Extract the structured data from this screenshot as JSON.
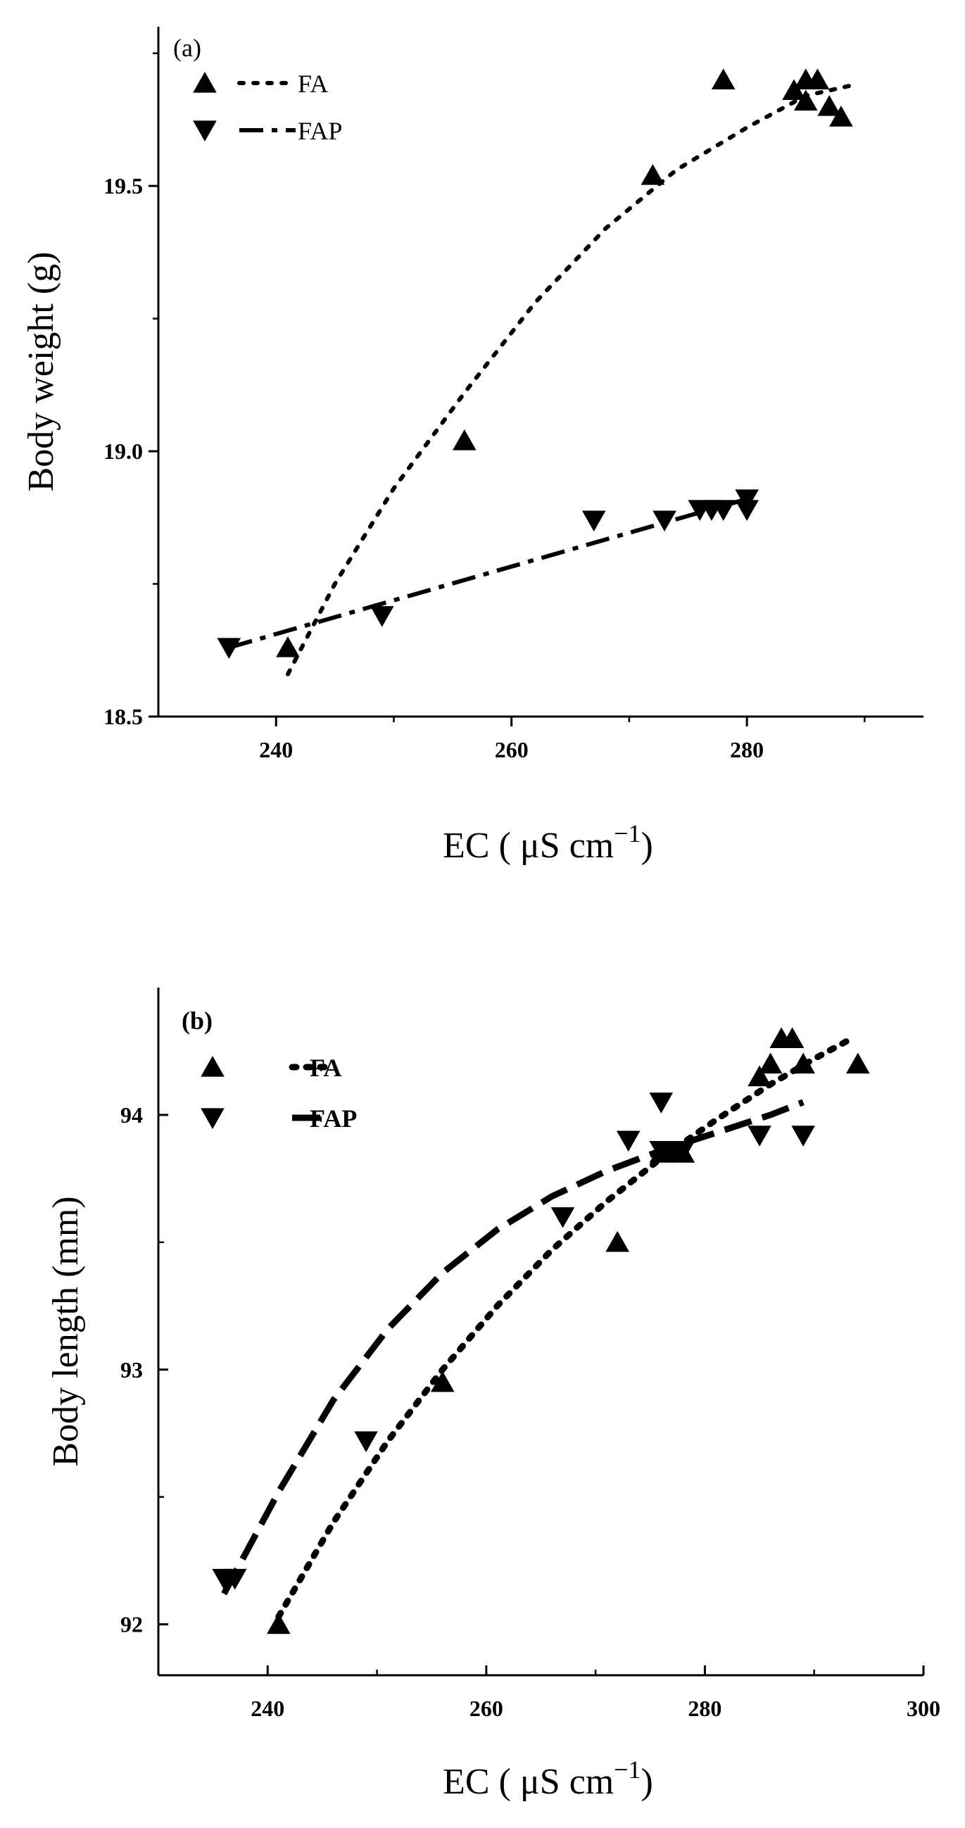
{
  "chart_data": [
    {
      "type": "scatter",
      "panel_label": "(a)",
      "xlabel": "EC ( μS cm−1)",
      "xlabel_parts": {
        "main": "EC ( μS cm",
        "sup": "−1",
        "close": ")"
      },
      "ylabel": "Body weight (g)",
      "xlim": [
        230,
        295
      ],
      "ylim": [
        18.5,
        19.8
      ],
      "xticks": [
        240,
        260,
        280
      ],
      "xtick_labels": [
        "240",
        "260",
        "280"
      ],
      "yticks": [
        18.5,
        19.0,
        19.5
      ],
      "ytick_labels": [
        "18.5",
        "19.0",
        "19.5"
      ],
      "grid": false,
      "legend_position": "top-left",
      "series": [
        {
          "name": "FA",
          "marker": "triangle-up",
          "line_style": "dotted",
          "points": [
            [
              241,
              18.63
            ],
            [
              256,
              19.02
            ],
            [
              272,
              19.52
            ],
            [
              278,
              19.7
            ],
            [
              284,
              19.68
            ],
            [
              285,
              19.7
            ],
            [
              285,
              19.66
            ],
            [
              286,
              19.7
            ],
            [
              287,
              19.65
            ],
            [
              288,
              19.63
            ]
          ],
          "fit": [
            [
              241,
              18.58
            ],
            [
              245,
              18.75
            ],
            [
              250,
              18.93
            ],
            [
              256,
              19.11
            ],
            [
              262,
              19.28
            ],
            [
              268,
              19.42
            ],
            [
              274,
              19.53
            ],
            [
              280,
              19.61
            ],
            [
              285,
              19.67
            ],
            [
              289,
              19.69
            ]
          ]
        },
        {
          "name": "FAP",
          "marker": "triangle-down",
          "line_style": "dash-dot",
          "points": [
            [
              236,
              18.63
            ],
            [
              249,
              18.69
            ],
            [
              267,
              18.87
            ],
            [
              273,
              18.87
            ],
            [
              276,
              18.89
            ],
            [
              277,
              18.89
            ],
            [
              278,
              18.89
            ],
            [
              280,
              18.91
            ],
            [
              280,
              18.89
            ]
          ],
          "fit": [
            [
              236,
              18.63
            ],
            [
              280,
              18.91
            ]
          ]
        }
      ]
    },
    {
      "type": "scatter",
      "panel_label": "(b)",
      "xlabel": "EC ( μS cm−1)",
      "xlabel_parts": {
        "main": "EC ( μS cm",
        "sup": "−1",
        "close": ")"
      },
      "ylabel": "Body length (mm)",
      "xlim": [
        230,
        300
      ],
      "ylim": [
        91.8,
        94.5
      ],
      "xticks": [
        240,
        260,
        280,
        300
      ],
      "xtick_labels": [
        "240",
        "260",
        "280",
        "300"
      ],
      "yticks": [
        92,
        93,
        94
      ],
      "ytick_labels": [
        "92",
        "93",
        "94"
      ],
      "grid": false,
      "legend_position": "top-left",
      "series": [
        {
          "name": "FA",
          "marker": "triangle-up",
          "line_style": "dotted",
          "points": [
            [
              241,
              92.0
            ],
            [
              256,
              92.95
            ],
            [
              272,
              93.5
            ],
            [
              276,
              93.85
            ],
            [
              278,
              93.85
            ],
            [
              285,
              94.15
            ],
            [
              286,
              94.2
            ],
            [
              287,
              94.3
            ],
            [
              288,
              94.3
            ],
            [
              289,
              94.2
            ],
            [
              294,
              94.2
            ]
          ],
          "fit": [
            [
              241,
              92.03
            ],
            [
              246,
              92.4
            ],
            [
              251,
              92.72
            ],
            [
              256,
              93.0
            ],
            [
              261,
              93.25
            ],
            [
              266,
              93.47
            ],
            [
              271,
              93.66
            ],
            [
              276,
              93.83
            ],
            [
              281,
              93.98
            ],
            [
              286,
              94.12
            ],
            [
              290,
              94.22
            ],
            [
              293,
              94.29
            ]
          ]
        },
        {
          "name": "FAP",
          "marker": "triangle-down",
          "line_style": "dashed",
          "points": [
            [
              236,
              92.18
            ],
            [
              237,
              92.18
            ],
            [
              249,
              92.72
            ],
            [
              267,
              93.6
            ],
            [
              273,
              93.9
            ],
            [
              276,
              94.05
            ],
            [
              276,
              93.86
            ],
            [
              277,
              93.86
            ],
            [
              278,
              93.86
            ],
            [
              285,
              93.92
            ],
            [
              289,
              93.92
            ]
          ],
          "fit": [
            [
              236,
              92.12
            ],
            [
              241,
              92.52
            ],
            [
              246,
              92.88
            ],
            [
              251,
              93.16
            ],
            [
              256,
              93.38
            ],
            [
              261,
              93.55
            ],
            [
              266,
              93.68
            ],
            [
              271,
              93.78
            ],
            [
              276,
              93.86
            ],
            [
              281,
              93.93
            ],
            [
              286,
              94.0
            ],
            [
              289,
              94.05
            ]
          ]
        }
      ]
    }
  ]
}
